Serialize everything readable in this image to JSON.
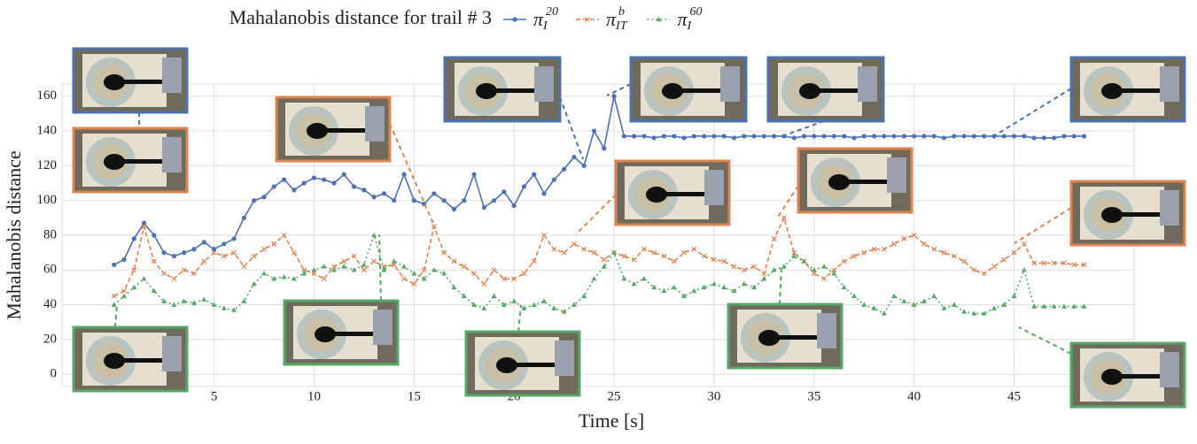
{
  "chart_data": {
    "type": "line",
    "title": "Mahalanobis distance for trail # 3",
    "xlabel": "Time [s]",
    "ylabel": "Mahalanobis distance",
    "x": [
      0,
      0.5,
      1,
      1.5,
      2,
      2.5,
      3,
      3.5,
      4,
      4.5,
      5,
      5.5,
      6,
      6.5,
      7,
      7.5,
      8,
      8.5,
      9,
      9.5,
      10,
      10.5,
      11,
      11.5,
      12,
      12.5,
      13,
      13.5,
      14,
      14.5,
      15,
      15.5,
      16,
      16.5,
      17,
      17.5,
      18,
      18.5,
      19,
      19.5,
      20,
      20.5,
      21,
      21.5,
      22,
      22.5,
      23,
      23.5,
      24,
      24.5,
      25,
      25.5,
      26,
      26.5,
      27,
      27.5,
      28,
      28.5,
      29,
      29.5,
      30,
      30.5,
      31,
      31.5,
      32,
      32.5,
      33,
      33.5,
      34,
      34.5,
      35,
      35.5,
      36,
      36.5,
      37,
      37.5,
      38,
      38.5,
      39,
      39.5,
      40,
      40.5,
      41,
      41.5,
      42,
      42.5,
      43,
      43.5,
      44,
      44.5,
      45,
      45.5,
      46,
      46.5,
      47,
      47.5,
      48,
      48.5
    ],
    "series": [
      {
        "name": "π",
        "subscript": "I",
        "superscript": "20",
        "color": "#4c72b0",
        "marker": "circle",
        "values": [
          63,
          66,
          78,
          87,
          80,
          70,
          68,
          70,
          72,
          76,
          72,
          75,
          78,
          90,
          100,
          102,
          108,
          112,
          106,
          110,
          113,
          112,
          110,
          115,
          108,
          106,
          102,
          104,
          100,
          115,
          100,
          98,
          104,
          100,
          95,
          100,
          115,
          96,
          100,
          105,
          97,
          108,
          115,
          104,
          112,
          118,
          125,
          120,
          140,
          130,
          160,
          137,
          137,
          137,
          136,
          137,
          137,
          136,
          137,
          137,
          137,
          137,
          136,
          137,
          137,
          137,
          137,
          137,
          136,
          137,
          137,
          137,
          137,
          137,
          136,
          137,
          137,
          137,
          137,
          137,
          137,
          137,
          137,
          136,
          137,
          137,
          137,
          137,
          137,
          137,
          137,
          137,
          136,
          136,
          136,
          137,
          137,
          137
        ]
      },
      {
        "name": "π",
        "subscript": "IT",
        "superscript": "b",
        "color": "#dd8452",
        "marker": "x",
        "values": [
          45,
          48,
          60,
          85,
          65,
          58,
          55,
          60,
          58,
          65,
          70,
          68,
          70,
          62,
          68,
          72,
          75,
          80,
          70,
          60,
          58,
          55,
          62,
          65,
          68,
          60,
          65,
          62,
          63,
          55,
          52,
          60,
          85,
          70,
          65,
          62,
          58,
          52,
          60,
          55,
          55,
          58,
          65,
          80,
          72,
          70,
          75,
          72,
          70,
          66,
          70,
          68,
          66,
          72,
          70,
          68,
          65,
          70,
          72,
          68,
          66,
          65,
          62,
          60,
          62,
          58,
          78,
          90,
          70,
          65,
          58,
          55,
          60,
          65,
          68,
          70,
          72,
          72,
          75,
          78,
          80,
          75,
          72,
          70,
          68,
          65,
          60,
          58,
          62,
          66,
          70,
          75,
          64,
          64,
          64,
          64,
          63,
          63
        ]
      },
      {
        "name": "π",
        "subscript": "I",
        "superscript": "60",
        "color": "#55a868",
        "marker": "triangle",
        "values": [
          40,
          45,
          50,
          55,
          48,
          42,
          40,
          42,
          41,
          43,
          40,
          38,
          37,
          42,
          52,
          58,
          55,
          56,
          55,
          58,
          60,
          62,
          60,
          62,
          60,
          63,
          80,
          60,
          65,
          62,
          58,
          55,
          60,
          58,
          50,
          45,
          40,
          38,
          45,
          40,
          42,
          38,
          40,
          42,
          38,
          36,
          40,
          45,
          55,
          62,
          70,
          55,
          52,
          55,
          50,
          48,
          50,
          45,
          48,
          50,
          52,
          50,
          48,
          52,
          50,
          55,
          60,
          62,
          68,
          65,
          60,
          62,
          58,
          50,
          45,
          40,
          38,
          35,
          45,
          42,
          40,
          42,
          45,
          38,
          40,
          36,
          35,
          35,
          38,
          40,
          45,
          60,
          39,
          39,
          39,
          39,
          39,
          39
        ]
      }
    ],
    "xlim": [
      -2.6,
      51
    ],
    "ylim": [
      -7,
      167
    ],
    "xticks": [
      5,
      10,
      15,
      20,
      25,
      30,
      35,
      40,
      45
    ],
    "yticks": [
      0,
      20,
      40,
      60,
      80,
      100,
      120,
      140,
      160
    ],
    "grid": true
  }
}
